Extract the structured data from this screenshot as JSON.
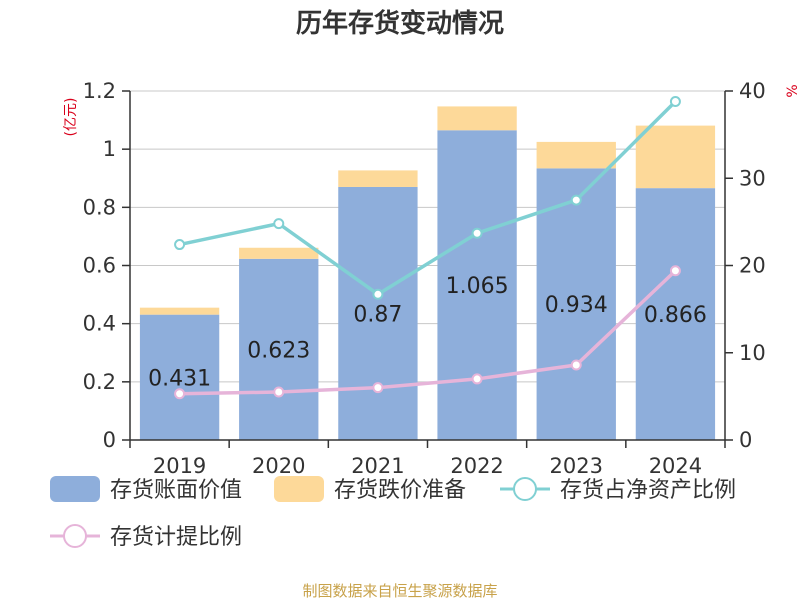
{
  "chart_data": {
    "type": "bar",
    "title": "历年存货变动情况",
    "categories": [
      "2019",
      "2020",
      "2021",
      "2022",
      "2023",
      "2024"
    ],
    "left_axis": {
      "unit_label": "(亿元)",
      "ylim": [
        0,
        1.2
      ],
      "ticks": [
        "0",
        "0.2",
        "0.4",
        "0.6",
        "0.8",
        "1",
        "1.2"
      ],
      "tick_values": [
        0,
        0.2,
        0.4,
        0.6,
        0.8,
        1.0,
        1.2
      ]
    },
    "right_axis": {
      "unit_label": "%",
      "ylim": [
        0,
        40
      ],
      "ticks": [
        "0",
        "10",
        "20",
        "30",
        "40"
      ],
      "tick_values": [
        0,
        10,
        20,
        30,
        40
      ]
    },
    "series": [
      {
        "name": "存货账面价值",
        "kind": "bar",
        "axis": "left",
        "color": "#8eaedb",
        "values": [
          0.431,
          0.623,
          0.87,
          1.065,
          0.934,
          0.866
        ],
        "labels": [
          "0.431",
          "0.623",
          "0.87",
          "1.065",
          "0.934",
          "0.866"
        ]
      },
      {
        "name": "存货跌价准备",
        "kind": "bar",
        "axis": "left",
        "stacked": true,
        "color": "#fdd999",
        "values": [
          0.024,
          0.038,
          0.057,
          0.082,
          0.091,
          0.215
        ]
      },
      {
        "name": "存货占净资产比例",
        "kind": "line",
        "axis": "right",
        "color": "#80d0d3",
        "values": [
          22.4,
          24.8,
          16.7,
          23.7,
          27.5,
          38.8
        ]
      },
      {
        "name": "存货计提比例",
        "kind": "line",
        "axis": "right",
        "color": "#e6b4d9",
        "values": [
          5.3,
          5.5,
          6.0,
          7.0,
          8.6,
          19.4
        ]
      }
    ],
    "grid": true,
    "legend_position": "bottom"
  },
  "source_note": "制图数据来自恒生聚源数据库"
}
